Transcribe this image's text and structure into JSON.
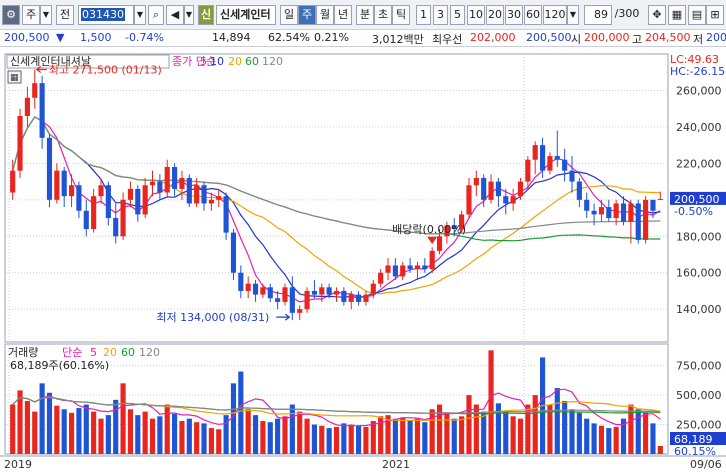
{
  "toolbar": {
    "type_label": "주",
    "range_label": "전",
    "code": "031430",
    "name_badge": "신",
    "stock_name": "신세계인터",
    "periods": [
      "일",
      "주",
      "월",
      "년",
      "분",
      "초",
      "틱"
    ],
    "active_period": "주",
    "intervals": [
      "1",
      "3",
      "5",
      "10",
      "20",
      "30",
      "60",
      "120"
    ],
    "count": "89",
    "count_total": "/300"
  },
  "quote": {
    "price": "200,500",
    "change_arrow": "▼",
    "change": "1,500",
    "change_pct": "-0.74%",
    "volume": "14,894",
    "volume_pct": "62.54%",
    "turnover_pct": "0.21%",
    "amount": "3,012백만",
    "best_label": "최우선",
    "best_ask": "202,000",
    "best_bid": "200,500",
    "open_label": "시",
    "open": "200,000",
    "high_label": "고",
    "high": "204,500",
    "low_label": "저",
    "low": "200,"
  },
  "price_panel": {
    "title": "신세계인터내셔날",
    "ma_label": "종가 단순",
    "ma_periods": [
      "5",
      "10",
      "20",
      "60",
      "120"
    ],
    "ma_colors": [
      "#e81fb0",
      "#2233cc",
      "#f0a400",
      "#1e9a2a",
      "#888888"
    ],
    "lc_label": "LC:49.63",
    "hc_label": "HC:-26.15",
    "high_marker": "최고 271,500 (01/13)",
    "low_marker": "최저 134,000 (08/31)",
    "dividend_marker": "배당락(0.00%)",
    "last_price_tag": "200,500",
    "last_pct_tag": "-0.50%",
    "y_ticks": [
      "260,000",
      "240,000",
      "220,000",
      "200,000",
      "180,000",
      "160,000",
      "140,000"
    ]
  },
  "volume_panel": {
    "title": "거래량",
    "ma_label": "단순",
    "ma_periods": [
      "5",
      "20",
      "60",
      "120"
    ],
    "ma_colors": [
      "#e81fb0",
      "#f0a400",
      "#1e9a2a",
      "#888888"
    ],
    "summary": "68,189주(60.16%)",
    "last_volume_tag": "68,189",
    "last_pct_tag": "60.15%",
    "y_ticks": [
      "750,000",
      "500,000",
      "250,000"
    ]
  },
  "x_axis": {
    "labels": [
      "2019",
      "2021"
    ],
    "last_label": "09/06"
  },
  "chart_data": {
    "type": "candlestick",
    "price_range": [
      122000,
      280000
    ],
    "volume_range": [
      0,
      900000
    ],
    "candles": [
      [
        204000,
        222000,
        200000,
        216000,
        420000
      ],
      [
        216000,
        250000,
        212000,
        246000,
        540000
      ],
      [
        246000,
        262000,
        240000,
        256000,
        450000
      ],
      [
        256000,
        271500,
        250000,
        264000,
        360000
      ],
      [
        264000,
        268000,
        228000,
        234000,
        600000
      ],
      [
        234000,
        236000,
        196000,
        200000,
        520000
      ],
      [
        200000,
        220000,
        198000,
        216000,
        410000
      ],
      [
        216000,
        218000,
        196000,
        202000,
        380000
      ],
      [
        202000,
        214000,
        196000,
        208000,
        350000
      ],
      [
        208000,
        210000,
        190000,
        194000,
        390000
      ],
      [
        194000,
        200000,
        180000,
        184000,
        420000
      ],
      [
        184000,
        206000,
        182000,
        202000,
        360000
      ],
      [
        202000,
        212000,
        198000,
        208000,
        300000
      ],
      [
        208000,
        210000,
        186000,
        190000,
        330000
      ],
      [
        190000,
        198000,
        176000,
        180000,
        460000
      ],
      [
        180000,
        204000,
        178000,
        200000,
        600000
      ],
      [
        200000,
        210000,
        196000,
        206000,
        380000
      ],
      [
        206000,
        208000,
        188000,
        192000,
        330000
      ],
      [
        192000,
        212000,
        190000,
        208000,
        360000
      ],
      [
        208000,
        216000,
        202000,
        210000,
        300000
      ],
      [
        210000,
        214000,
        200000,
        204000,
        320000
      ],
      [
        204000,
        222000,
        202000,
        218000,
        420000
      ],
      [
        218000,
        220000,
        202000,
        206000,
        340000
      ],
      [
        206000,
        216000,
        200000,
        212000,
        280000
      ],
      [
        212000,
        214000,
        196000,
        198000,
        300000
      ],
      [
        198000,
        212000,
        196000,
        208000,
        270000
      ],
      [
        208000,
        210000,
        194000,
        198000,
        260000
      ],
      [
        198000,
        204000,
        194000,
        200000,
        220000
      ],
      [
        200000,
        206000,
        196000,
        202000,
        210000
      ],
      [
        202000,
        204000,
        178000,
        182000,
        330000
      ],
      [
        182000,
        184000,
        156000,
        160000,
        600000
      ],
      [
        160000,
        164000,
        146000,
        150000,
        700000
      ],
      [
        150000,
        158000,
        146000,
        154000,
        380000
      ],
      [
        154000,
        156000,
        144000,
        148000,
        330000
      ],
      [
        148000,
        154000,
        146000,
        152000,
        280000
      ],
      [
        152000,
        154000,
        144000,
        146000,
        270000
      ],
      [
        146000,
        150000,
        140000,
        144000,
        300000
      ],
      [
        144000,
        154000,
        142000,
        152000,
        320000
      ],
      [
        152000,
        158000,
        134000,
        138000,
        420000
      ],
      [
        138000,
        142000,
        134000,
        140000,
        360000
      ],
      [
        140000,
        152000,
        138000,
        150000,
        300000
      ],
      [
        150000,
        156000,
        146000,
        148000,
        250000
      ],
      [
        148000,
        154000,
        144000,
        152000,
        240000
      ],
      [
        152000,
        154000,
        146000,
        148000,
        220000
      ],
      [
        148000,
        152000,
        144000,
        150000,
        230000
      ],
      [
        150000,
        152000,
        142000,
        144000,
        260000
      ],
      [
        144000,
        150000,
        140000,
        148000,
        250000
      ],
      [
        148000,
        150000,
        142000,
        144000,
        240000
      ],
      [
        144000,
        150000,
        142000,
        148000,
        230000
      ],
      [
        148000,
        156000,
        146000,
        154000,
        280000
      ],
      [
        154000,
        162000,
        152000,
        160000,
        320000
      ],
      [
        160000,
        168000,
        156000,
        164000,
        330000
      ],
      [
        164000,
        168000,
        156000,
        158000,
        300000
      ],
      [
        158000,
        166000,
        156000,
        164000,
        310000
      ],
      [
        164000,
        168000,
        160000,
        162000,
        280000
      ],
      [
        162000,
        166000,
        156000,
        164000,
        300000
      ],
      [
        164000,
        168000,
        160000,
        162000,
        270000
      ],
      [
        162000,
        174000,
        160000,
        172000,
        380000
      ],
      [
        172000,
        184000,
        170000,
        180000,
        420000
      ],
      [
        180000,
        188000,
        176000,
        186000,
        350000
      ],
      [
        186000,
        190000,
        180000,
        184000,
        300000
      ],
      [
        184000,
        194000,
        182000,
        192000,
        320000
      ],
      [
        192000,
        212000,
        190000,
        208000,
        500000
      ],
      [
        208000,
        216000,
        202000,
        212000,
        420000
      ],
      [
        212000,
        214000,
        196000,
        200000,
        360000
      ],
      [
        200000,
        214000,
        198000,
        210000,
        880000
      ],
      [
        210000,
        212000,
        196000,
        202000,
        430000
      ],
      [
        202000,
        206000,
        192000,
        198000,
        360000
      ],
      [
        198000,
        206000,
        194000,
        202000,
        320000
      ],
      [
        202000,
        212000,
        200000,
        210000,
        300000
      ],
      [
        210000,
        224000,
        206000,
        222000,
        420000
      ],
      [
        222000,
        232000,
        214000,
        230000,
        500000
      ],
      [
        230000,
        234000,
        212000,
        216000,
        820000
      ],
      [
        216000,
        226000,
        214000,
        224000,
        420000
      ],
      [
        224000,
        238000,
        218000,
        222000,
        560000
      ],
      [
        222000,
        228000,
        210000,
        216000,
        450000
      ],
      [
        216000,
        224000,
        204000,
        210000,
        380000
      ],
      [
        210000,
        212000,
        196000,
        200000,
        350000
      ],
      [
        200000,
        204000,
        190000,
        194000,
        300000
      ],
      [
        194000,
        198000,
        186000,
        192000,
        260000
      ],
      [
        192000,
        200000,
        188000,
        196000,
        240000
      ],
      [
        196000,
        200000,
        188000,
        190000,
        220000
      ],
      [
        190000,
        200000,
        186000,
        198000,
        230000
      ],
      [
        198000,
        202000,
        186000,
        188000,
        300000
      ],
      [
        188000,
        200000,
        176000,
        198000,
        420000
      ],
      [
        198000,
        200000,
        176000,
        178000,
        380000
      ],
      [
        178000,
        202000,
        176000,
        200000,
        350000
      ],
      [
        200000,
        200000,
        190000,
        194000,
        260000
      ],
      [
        200000,
        204500,
        200000,
        200500,
        68189
      ]
    ]
  }
}
